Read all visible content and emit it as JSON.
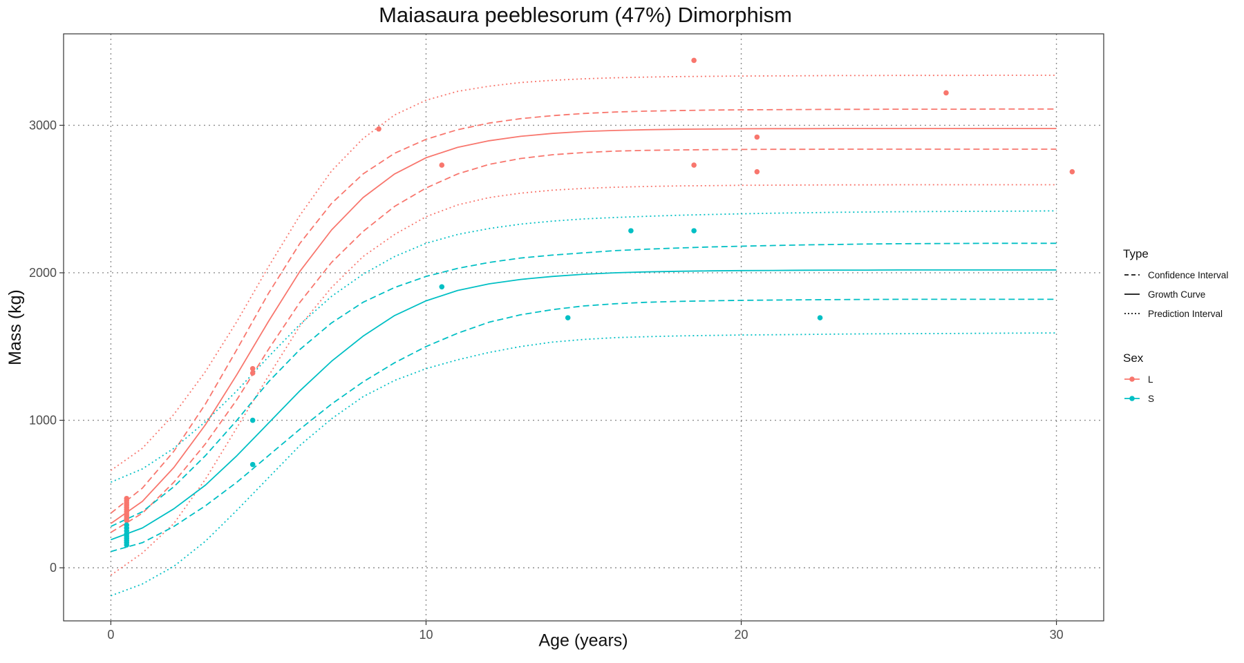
{
  "chart_data": {
    "type": "line",
    "title": "Maiasaura peeblesorum (47%) Dimorphism",
    "xlabel": "Age (years)",
    "ylabel": "Mass (kg)",
    "xlim": [
      -1.5,
      31.5
    ],
    "ylim": [
      -360,
      3620
    ],
    "x_ticks": [
      0,
      10,
      20,
      30
    ],
    "x_tick_labels": [
      "0",
      "10",
      "20",
      "30"
    ],
    "y_ticks": [
      0,
      1000,
      2000,
      3000
    ],
    "y_tick_labels": [
      "0",
      "1000",
      "2000",
      "3000"
    ],
    "grid": "dotted major gridlines",
    "colors": {
      "L": "#F8766D",
      "S": "#00BFC4"
    },
    "legend": {
      "placement": "right",
      "type_title": "Type",
      "type_entries": [
        {
          "label": "Confidence Interval",
          "linetype": "dashed"
        },
        {
          "label": "Growth Curve",
          "linetype": "solid"
        },
        {
          "label": "Prediction Interval",
          "linetype": "dotted"
        }
      ],
      "sex_title": "Sex",
      "sex_entries": [
        {
          "label": "L",
          "color": "#F8766D"
        },
        {
          "label": "S",
          "color": "#00BFC4"
        }
      ]
    },
    "curve_x": [
      0,
      1,
      2,
      3,
      4,
      5,
      6,
      7,
      8,
      9,
      10,
      11,
      12,
      13,
      14,
      15,
      16,
      17,
      18,
      19,
      20,
      21,
      22,
      23,
      24,
      25,
      26,
      27,
      28,
      29,
      30
    ],
    "lines": [
      {
        "sex": "L",
        "type": "Growth Curve",
        "linetype": "solid",
        "y": [
          300,
          450,
          680,
          970,
          1310,
          1670,
          2010,
          2290,
          2510,
          2670,
          2780,
          2850,
          2895,
          2925,
          2945,
          2958,
          2965,
          2970,
          2973,
          2975,
          2976,
          2977,
          2977,
          2978,
          2978,
          2978,
          2978,
          2978,
          2978,
          2978,
          2978
        ]
      },
      {
        "sex": "L",
        "type": "Confidence Interval",
        "linetype": "dashed",
        "y": [
          370,
          540,
          790,
          1110,
          1480,
          1860,
          2200,
          2470,
          2670,
          2810,
          2905,
          2970,
          3015,
          3045,
          3065,
          3080,
          3090,
          3096,
          3100,
          3103,
          3105,
          3106,
          3107,
          3108,
          3108,
          3109,
          3109,
          3109,
          3110,
          3110,
          3110
        ]
      },
      {
        "sex": "L",
        "type": "Confidence Interval",
        "linetype": "dashed",
        "y": [
          240,
          370,
          580,
          840,
          1140,
          1480,
          1800,
          2070,
          2280,
          2450,
          2575,
          2670,
          2735,
          2775,
          2800,
          2815,
          2825,
          2830,
          2833,
          2835,
          2836,
          2837,
          2837,
          2838,
          2838,
          2838,
          2838,
          2838,
          2838,
          2838,
          2838
        ]
      },
      {
        "sex": "L",
        "type": "Prediction Interval",
        "linetype": "dotted",
        "y": [
          660,
          810,
          1040,
          1330,
          1670,
          2040,
          2390,
          2690,
          2910,
          3070,
          3170,
          3230,
          3265,
          3290,
          3305,
          3315,
          3322,
          3327,
          3330,
          3332,
          3334,
          3335,
          3336,
          3337,
          3337,
          3338,
          3338,
          3338,
          3339,
          3339,
          3339
        ]
      },
      {
        "sex": "L",
        "type": "Prediction Interval",
        "linetype": "dotted",
        "y": [
          -50,
          100,
          300,
          600,
          950,
          1300,
          1640,
          1900,
          2110,
          2260,
          2380,
          2460,
          2510,
          2540,
          2560,
          2572,
          2580,
          2585,
          2589,
          2591,
          2593,
          2594,
          2595,
          2596,
          2596,
          2597,
          2597,
          2597,
          2597,
          2597,
          2597
        ]
      },
      {
        "sex": "S",
        "type": "Growth Curve",
        "linetype": "solid",
        "y": [
          190,
          270,
          400,
          560,
          760,
          980,
          1200,
          1400,
          1570,
          1710,
          1810,
          1880,
          1925,
          1955,
          1975,
          1990,
          2000,
          2006,
          2010,
          2013,
          2015,
          2016,
          2017,
          2018,
          2018,
          2019,
          2019,
          2019,
          2019,
          2019,
          2019
        ]
      },
      {
        "sex": "S",
        "type": "Confidence Interval",
        "linetype": "dashed",
        "y": [
          280,
          380,
          550,
          760,
          1000,
          1260,
          1480,
          1660,
          1800,
          1900,
          1975,
          2030,
          2070,
          2100,
          2120,
          2135,
          2150,
          2160,
          2168,
          2175,
          2180,
          2185,
          2189,
          2192,
          2195,
          2197,
          2198,
          2199,
          2200,
          2200,
          2200
        ]
      },
      {
        "sex": "S",
        "type": "Confidence Interval",
        "linetype": "dashed",
        "y": [
          110,
          170,
          280,
          420,
          580,
          760,
          940,
          1110,
          1260,
          1390,
          1500,
          1590,
          1665,
          1715,
          1750,
          1775,
          1790,
          1800,
          1806,
          1810,
          1813,
          1815,
          1817,
          1818,
          1819,
          1820,
          1820,
          1820,
          1820,
          1820,
          1820
        ]
      },
      {
        "sex": "S",
        "type": "Prediction Interval",
        "linetype": "dotted",
        "y": [
          580,
          670,
          810,
          990,
          1200,
          1430,
          1650,
          1840,
          1990,
          2110,
          2200,
          2260,
          2300,
          2330,
          2350,
          2365,
          2375,
          2383,
          2390,
          2395,
          2400,
          2404,
          2407,
          2410,
          2412,
          2414,
          2415,
          2416,
          2417,
          2418,
          2420
        ]
      },
      {
        "sex": "S",
        "type": "Prediction Interval",
        "linetype": "dotted",
        "y": [
          -190,
          -110,
          10,
          180,
          390,
          610,
          830,
          1010,
          1160,
          1270,
          1350,
          1410,
          1460,
          1500,
          1530,
          1548,
          1560,
          1567,
          1572,
          1575,
          1578,
          1580,
          1582,
          1584,
          1586,
          1587,
          1588,
          1589,
          1590,
          1591,
          1592
        ]
      }
    ],
    "points": [
      {
        "sex": "L",
        "x": 0.5,
        "y": 470
      },
      {
        "sex": "L",
        "x": 0.5,
        "y": 455
      },
      {
        "sex": "L",
        "x": 0.5,
        "y": 440
      },
      {
        "sex": "L",
        "x": 0.5,
        "y": 425
      },
      {
        "sex": "L",
        "x": 0.5,
        "y": 410
      },
      {
        "sex": "L",
        "x": 0.5,
        "y": 395
      },
      {
        "sex": "L",
        "x": 0.5,
        "y": 380
      },
      {
        "sex": "L",
        "x": 0.5,
        "y": 365
      },
      {
        "sex": "L",
        "x": 0.5,
        "y": 350
      },
      {
        "sex": "L",
        "x": 0.5,
        "y": 335
      },
      {
        "sex": "L",
        "x": 0.5,
        "y": 320
      },
      {
        "sex": "L",
        "x": 4.5,
        "y": 1350
      },
      {
        "sex": "L",
        "x": 4.5,
        "y": 1320
      },
      {
        "sex": "L",
        "x": 8.5,
        "y": 2975
      },
      {
        "sex": "L",
        "x": 10.5,
        "y": 2730
      },
      {
        "sex": "L",
        "x": 18.5,
        "y": 3440
      },
      {
        "sex": "L",
        "x": 18.5,
        "y": 2730
      },
      {
        "sex": "L",
        "x": 20.5,
        "y": 2920
      },
      {
        "sex": "L",
        "x": 20.5,
        "y": 2685
      },
      {
        "sex": "L",
        "x": 26.5,
        "y": 3220
      },
      {
        "sex": "L",
        "x": 30.5,
        "y": 2685
      },
      {
        "sex": "S",
        "x": 0.5,
        "y": 290
      },
      {
        "sex": "S",
        "x": 0.5,
        "y": 270
      },
      {
        "sex": "S",
        "x": 0.5,
        "y": 250
      },
      {
        "sex": "S",
        "x": 0.5,
        "y": 230
      },
      {
        "sex": "S",
        "x": 0.5,
        "y": 215
      },
      {
        "sex": "S",
        "x": 0.5,
        "y": 200
      },
      {
        "sex": "S",
        "x": 0.5,
        "y": 185
      },
      {
        "sex": "S",
        "x": 0.5,
        "y": 170
      },
      {
        "sex": "S",
        "x": 0.5,
        "y": 155
      },
      {
        "sex": "S",
        "x": 4.5,
        "y": 1000
      },
      {
        "sex": "S",
        "x": 4.5,
        "y": 700
      },
      {
        "sex": "S",
        "x": 10.5,
        "y": 1905
      },
      {
        "sex": "S",
        "x": 14.5,
        "y": 1695
      },
      {
        "sex": "S",
        "x": 16.5,
        "y": 2285
      },
      {
        "sex": "S",
        "x": 18.5,
        "y": 2285
      },
      {
        "sex": "S",
        "x": 22.5,
        "y": 1695
      }
    ]
  }
}
